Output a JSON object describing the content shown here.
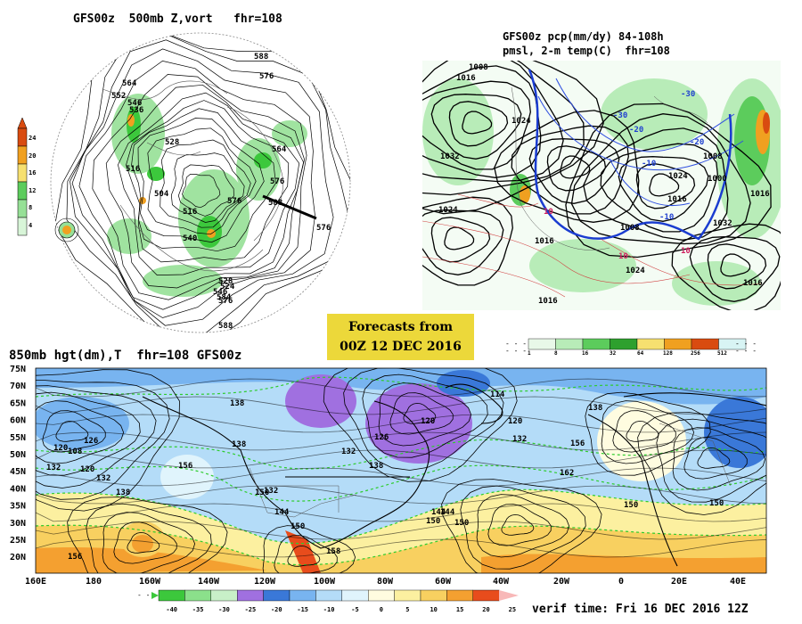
{
  "panel_top_left": {
    "title": "GFS00z  500mb Z,vort   fhr=108",
    "colorbar_ticks": [
      "24",
      "20",
      "16",
      "12",
      "8",
      "4"
    ],
    "colorbar_colors": [
      "#d94b10",
      "#f0a020",
      "#f6e070",
      "#5ccc5c",
      "#96e096",
      "#d8f5d8"
    ],
    "contour_labels": [
      "588",
      "576",
      "564",
      "552",
      "546",
      "536",
      "528",
      "516",
      "504",
      "516",
      "540",
      "564",
      "576",
      "588",
      "576",
      "576",
      "576",
      "588",
      "546",
      "584",
      "524",
      "528"
    ]
  },
  "panel_top_right": {
    "title_line1": "GFS00z pcp(mm/dy) 84-108h",
    "title_line2": "pmsl, 2-m temp(C)  fhr=108",
    "isobar_labels": [
      "1008",
      "1016",
      "1024",
      "1032",
      "1024",
      "1016",
      "1008",
      "1016",
      "1024",
      "1032",
      "1008",
      "1000",
      "1016",
      "1024",
      "1016",
      "1016"
    ],
    "temp_labels": [
      "-30",
      "-20",
      "-10",
      "10",
      "10",
      "-30",
      "-20",
      "-10",
      "10"
    ],
    "colorbar_ticks": [
      "1",
      "8",
      "16",
      "32",
      "64",
      "128",
      "256",
      "512"
    ],
    "colorbar_colors": [
      "#e8f8e8",
      "#b8ecb8",
      "#5ccc5c",
      "#2ea02e",
      "#f6e070",
      "#f0a020",
      "#d94b10",
      "#d8f4f4"
    ]
  },
  "forecast_box": {
    "line1": "Forecasts from",
    "line2": "00Z 12 DEC 2016"
  },
  "panel_bottom": {
    "title": "850mb hgt(dm),T  fhr=108 GFS00z",
    "lat_ticks": [
      "75N",
      "70N",
      "65N",
      "60N",
      "55N",
      "50N",
      "45N",
      "40N",
      "35N",
      "30N",
      "25N",
      "20N"
    ],
    "lon_ticks": [
      "160E",
      "180",
      "160W",
      "140W",
      "120W",
      "100W",
      "80W",
      "60W",
      "40W",
      "20W",
      "0",
      "20E",
      "40E"
    ],
    "height_labels": [
      "138",
      "138",
      "120",
      "126",
      "132",
      "138",
      "114",
      "120",
      "132",
      "138",
      "156",
      "120",
      "132",
      "150",
      "144",
      "150",
      "132",
      "144",
      "150",
      "144",
      "150",
      "158",
      "156",
      "162",
      "150",
      "150",
      "156",
      "126",
      "108",
      "120",
      "132",
      "138"
    ],
    "colorbar_ticks": [
      "-40",
      "-35",
      "-30",
      "-25",
      "-20",
      "-15",
      "-10",
      "-5",
      "0",
      "5",
      "10",
      "15",
      "20",
      "25"
    ],
    "colorbar_colors": [
      "#3cc83c",
      "#8be08b",
      "#c8f0c8",
      "#a070e0",
      "#3a78d8",
      "#78b4f0",
      "#b4dcf8",
      "#e0f4fc",
      "#fffce0",
      "#fcf0a0",
      "#f8d060",
      "#f4a030",
      "#e84c1c"
    ]
  },
  "verif_time": "verif time: Fri 16 DEC 2016 12Z"
}
